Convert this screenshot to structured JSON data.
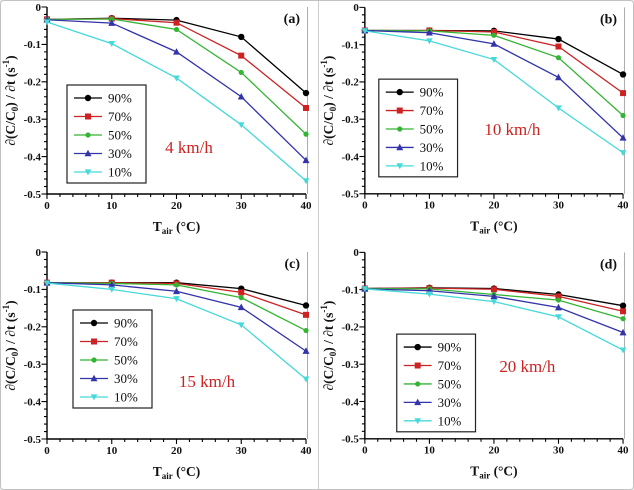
{
  "figure": {
    "background": "#ffffff",
    "border_color": "#c2c2c2",
    "annotation_color": "#cc2222",
    "axis_color": "#000000",
    "gray_spine_color": "#ababab"
  },
  "axis_text": {
    "xlabel": "Tair (°C)",
    "ylabel": "∂(C/C0) / ∂t (s-1)",
    "xlabel_parts": [
      {
        "t": "T"
      },
      {
        "t": "air",
        "s": "sub"
      },
      {
        "t": " (°C)"
      }
    ],
    "ylabel_parts": [
      {
        "t": "∂(C/C"
      },
      {
        "t": "0",
        "s": "sub"
      },
      {
        "t": ") / ∂t  (s"
      },
      {
        "t": "-1",
        "s": "sup"
      },
      {
        "t": ")"
      }
    ],
    "xtick_labels": [
      "0",
      "10",
      "20",
      "30",
      "40"
    ],
    "ytick_labels": [
      "0",
      "-0.1",
      "-0.2",
      "-0.3",
      "-0.4",
      "-0.5"
    ]
  },
  "legend": {
    "entries": [
      {
        "label": "90%",
        "color": "#000000",
        "marker": "circle"
      },
      {
        "label": "70%",
        "color": "#cc2222",
        "marker": "square"
      },
      {
        "label": "50%",
        "color": "#33b433",
        "marker": "circle-small"
      },
      {
        "label": "30%",
        "color": "#3333aa",
        "marker": "triangle-up"
      },
      {
        "label": "10%",
        "color": "#45d9d9",
        "marker": "triangle-down"
      }
    ]
  },
  "chart_data": [
    {
      "type": "line",
      "panel_label": "(a)",
      "annotation": "4 km/h",
      "xlabel": "Tair (°C)",
      "ylabel": "∂(C/C0) / ∂t (s-1)",
      "xlim": [
        0,
        40
      ],
      "ylim": [
        -0.5,
        0
      ],
      "x": [
        0,
        10,
        20,
        30,
        40
      ],
      "series": [
        {
          "name": "90%",
          "color": "#000000",
          "marker": "circle",
          "values": [
            -0.033,
            -0.03,
            -0.035,
            -0.08,
            -0.23
          ]
        },
        {
          "name": "70%",
          "color": "#cc2222",
          "marker": "square",
          "values": [
            -0.033,
            -0.031,
            -0.042,
            -0.13,
            -0.27
          ]
        },
        {
          "name": "50%",
          "color": "#33b433",
          "marker": "circle-small",
          "values": [
            -0.033,
            -0.032,
            -0.06,
            -0.175,
            -0.34
          ]
        },
        {
          "name": "30%",
          "color": "#3333aa",
          "marker": "triangle-up",
          "values": [
            -0.034,
            -0.043,
            -0.12,
            -0.24,
            -0.41
          ]
        },
        {
          "name": "10%",
          "color": "#45d9d9",
          "marker": "triangle-down",
          "values": [
            -0.04,
            -0.098,
            -0.19,
            -0.315,
            -0.465
          ]
        }
      ]
    },
    {
      "type": "line",
      "panel_label": "(b)",
      "annotation": "10 km/h",
      "xlabel": "Tair (°C)",
      "ylabel": "∂(C/C0) / ∂t (s-1)",
      "xlim": [
        0,
        40
      ],
      "ylim": [
        -0.5,
        0
      ],
      "x": [
        0,
        10,
        20,
        30,
        40
      ],
      "series": [
        {
          "name": "90%",
          "color": "#000000",
          "marker": "circle",
          "values": [
            -0.062,
            -0.062,
            -0.063,
            -0.085,
            -0.18
          ]
        },
        {
          "name": "70%",
          "color": "#cc2222",
          "marker": "square",
          "values": [
            -0.062,
            -0.062,
            -0.066,
            -0.105,
            -0.23
          ]
        },
        {
          "name": "50%",
          "color": "#33b433",
          "marker": "circle-small",
          "values": [
            -0.062,
            -0.063,
            -0.075,
            -0.135,
            -0.29
          ]
        },
        {
          "name": "30%",
          "color": "#3333aa",
          "marker": "triangle-up",
          "values": [
            -0.062,
            -0.068,
            -0.098,
            -0.188,
            -0.35
          ]
        },
        {
          "name": "10%",
          "color": "#45d9d9",
          "marker": "triangle-down",
          "values": [
            -0.063,
            -0.09,
            -0.14,
            -0.27,
            -0.39
          ]
        }
      ]
    },
    {
      "type": "line",
      "panel_label": "(c)",
      "annotation": "15 km/h",
      "xlabel": "Tair (°C)",
      "ylabel": "∂(C/C0) / ∂t (s-1)",
      "xlim": [
        0,
        40
      ],
      "ylim": [
        -0.5,
        0
      ],
      "x": [
        0,
        10,
        20,
        30,
        40
      ],
      "series": [
        {
          "name": "90%",
          "color": "#000000",
          "marker": "circle",
          "values": [
            -0.082,
            -0.082,
            -0.082,
            -0.098,
            -0.143
          ]
        },
        {
          "name": "70%",
          "color": "#cc2222",
          "marker": "square",
          "values": [
            -0.082,
            -0.082,
            -0.084,
            -0.108,
            -0.168
          ]
        },
        {
          "name": "50%",
          "color": "#33b433",
          "marker": "circle-small",
          "values": [
            -0.082,
            -0.084,
            -0.088,
            -0.122,
            -0.21
          ]
        },
        {
          "name": "30%",
          "color": "#3333aa",
          "marker": "triangle-up",
          "values": [
            -0.082,
            -0.088,
            -0.105,
            -0.148,
            -0.265
          ]
        },
        {
          "name": "10%",
          "color": "#45d9d9",
          "marker": "triangle-down",
          "values": [
            -0.083,
            -0.1,
            -0.125,
            -0.195,
            -0.34
          ]
        }
      ]
    },
    {
      "type": "line",
      "panel_label": "(d)",
      "annotation": "20 km/h",
      "xlabel": "Tair (°C)",
      "ylabel": "∂(C/C0) / ∂t (s-1)",
      "xlim": [
        0,
        40
      ],
      "ylim": [
        -0.5,
        0
      ],
      "x": [
        0,
        10,
        20,
        30,
        40
      ],
      "series": [
        {
          "name": "90%",
          "color": "#000000",
          "marker": "circle",
          "values": [
            -0.097,
            -0.095,
            -0.097,
            -0.113,
            -0.143
          ]
        },
        {
          "name": "70%",
          "color": "#cc2222",
          "marker": "square",
          "values": [
            -0.097,
            -0.096,
            -0.099,
            -0.118,
            -0.158
          ]
        },
        {
          "name": "50%",
          "color": "#33b433",
          "marker": "circle-small",
          "values": [
            -0.097,
            -0.098,
            -0.113,
            -0.128,
            -0.178
          ]
        },
        {
          "name": "30%",
          "color": "#3333aa",
          "marker": "triangle-up",
          "values": [
            -0.098,
            -0.103,
            -0.118,
            -0.148,
            -0.215
          ]
        },
        {
          "name": "10%",
          "color": "#45d9d9",
          "marker": "triangle-down",
          "values": [
            -0.098,
            -0.112,
            -0.132,
            -0.173,
            -0.262
          ]
        }
      ]
    }
  ]
}
